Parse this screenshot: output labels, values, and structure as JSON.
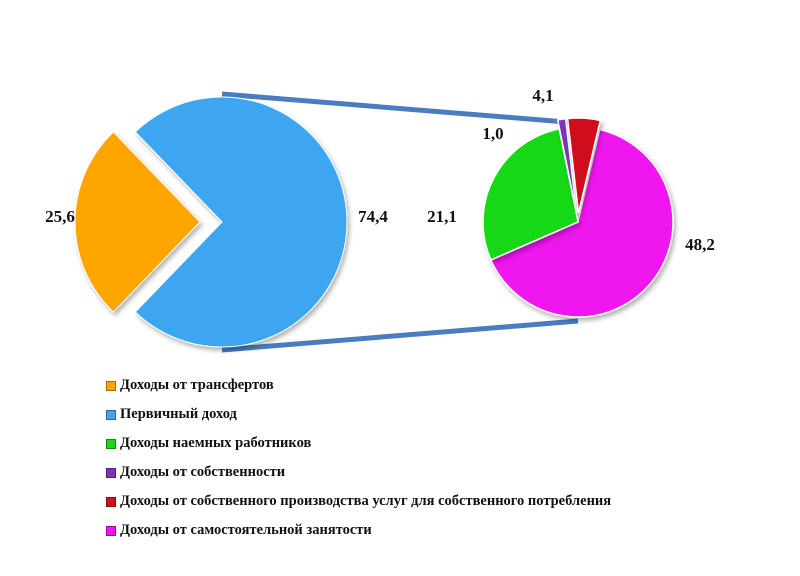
{
  "chart_data": {
    "type": "pie",
    "title": "",
    "main_pie": {
      "slices": [
        {
          "label": "Доходы от трансфертов",
          "value": 25.6,
          "value_label": "25,6",
          "color": "#ffa500",
          "exploded": true
        },
        {
          "label": "Первичный доход",
          "value": 74.4,
          "value_label": "74,4",
          "color": "#3ea6f0",
          "exploded": false
        }
      ]
    },
    "detail_pie": {
      "breakdown_of": "Первичный доход",
      "slices": [
        {
          "label": "Доходы наемных работников",
          "value": 21.1,
          "value_label": "21,1",
          "color": "#18d818"
        },
        {
          "label": "Доходы от собственности",
          "value": 1.0,
          "value_label": "1,0",
          "color": "#7a35b8"
        },
        {
          "label": "Доходы от собственного производства услуг для собственного потребления",
          "value": 4.1,
          "value_label": "4,1",
          "color": "#d0101a"
        },
        {
          "label": "Доходы от самостоятельной занятости",
          "value": 48.2,
          "value_label": "48,2",
          "color": "#ef12ef"
        }
      ]
    },
    "connector_color": "#4a7cbf",
    "legend_position": "bottom-left"
  },
  "legend": [
    {
      "label": "Доходы от трансфертов",
      "color": "#ffa500"
    },
    {
      "label": "Первичный доход",
      "color": "#3ea6f0"
    },
    {
      "label": "Доходы наемных работников",
      "color": "#18d818"
    },
    {
      "label": "Доходы от собственности",
      "color": "#7a35b8"
    },
    {
      "label": "Доходы от собственного производства услуг для собственного потребления",
      "color": "#d0101a"
    },
    {
      "label": "Доходы от самостоятельной занятости",
      "color": "#ef12ef"
    }
  ]
}
